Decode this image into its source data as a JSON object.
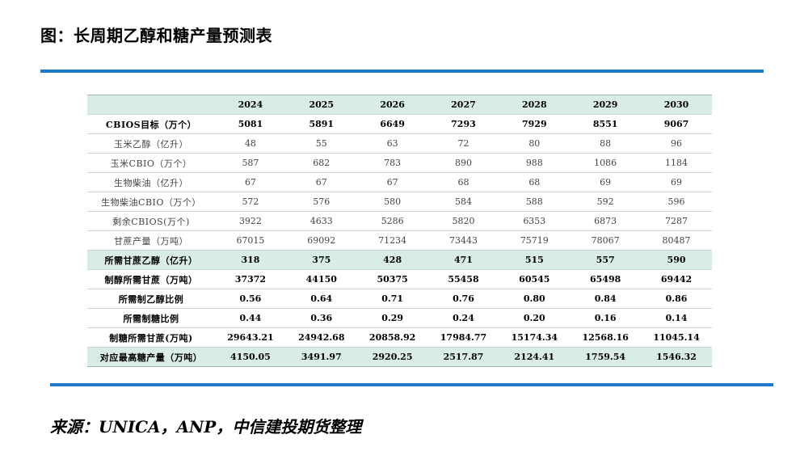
{
  "title": "图：长周期乙醇和糖产量预测表",
  "source": "来源：UNICA，ANP，中信建投期货整理",
  "colors": {
    "rule": "#1f78c8",
    "shade": "#d9ece6"
  },
  "table": {
    "headers": [
      "",
      "2024",
      "2025",
      "2026",
      "2027",
      "2028",
      "2029",
      "2030"
    ],
    "rows": [
      {
        "label": "CBIOS目标（万个）",
        "values": [
          "5081",
          "5891",
          "6649",
          "7293",
          "7929",
          "8551",
          "9067"
        ]
      },
      {
        "label": "玉米乙醇（亿升）",
        "values": [
          "48",
          "55",
          "63",
          "72",
          "80",
          "88",
          "96"
        ]
      },
      {
        "label": "玉米CBIO（万个）",
        "values": [
          "587",
          "682",
          "783",
          "890",
          "988",
          "1086",
          "1184"
        ]
      },
      {
        "label": "生物柴油（亿升）",
        "values": [
          "67",
          "67",
          "67",
          "68",
          "68",
          "69",
          "69"
        ]
      },
      {
        "label": "生物柴油CBIO（万个）",
        "values": [
          "572",
          "576",
          "580",
          "584",
          "588",
          "592",
          "596"
        ]
      },
      {
        "label": "剩余CBIOS(万个)",
        "values": [
          "3922",
          "4633",
          "5286",
          "5820",
          "6353",
          "6873",
          "7287"
        ]
      },
      {
        "label": "甘蔗产量（万吨）",
        "values": [
          "67015",
          "69092",
          "71234",
          "73443",
          "75719",
          "78067",
          "80487"
        ]
      },
      {
        "label": "所需甘蔗乙醇（亿升）",
        "values": [
          "318",
          "375",
          "428",
          "471",
          "515",
          "557",
          "590"
        ]
      },
      {
        "label": "制醇所需甘蔗（万吨）",
        "values": [
          "37372",
          "44150",
          "50375",
          "55458",
          "60545",
          "65498",
          "69442"
        ]
      },
      {
        "label": "所需制乙醇比例",
        "values": [
          "0.56",
          "0.64",
          "0.71",
          "0.76",
          "0.80",
          "0.84",
          "0.86"
        ]
      },
      {
        "label": "所需制糖比例",
        "values": [
          "0.44",
          "0.36",
          "0.29",
          "0.24",
          "0.20",
          "0.16",
          "0.14"
        ]
      },
      {
        "label": "制糖所需甘蔗(万吨)",
        "values": [
          "29643.21",
          "24942.68",
          "20858.92",
          "17984.77",
          "15174.34",
          "12568.16",
          "11045.14"
        ]
      },
      {
        "label": "对应最高糖产量（万吨）",
        "values": [
          "4150.05",
          "3491.97",
          "2920.25",
          "2517.87",
          "2124.41",
          "1759.54",
          "1546.32"
        ]
      }
    ]
  }
}
